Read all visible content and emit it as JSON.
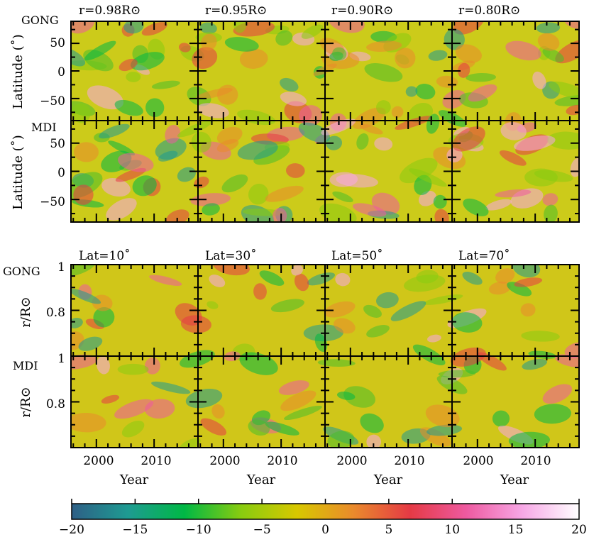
{
  "chart_data": {
    "type": "heatmap",
    "colorbar": {
      "min": -20,
      "max": 20,
      "tick_labels": [
        "−20",
        "−15",
        "−10",
        "−5",
        "0",
        "5",
        "10",
        "15",
        "20"
      ],
      "colors": [
        "#2e5f86",
        "#1e9b92",
        "#00b845",
        "#88cc10",
        "#d8c800",
        "#ea8a2c",
        "#e53a45",
        "#ee5aa0",
        "#f7a8e6",
        "#ffffff"
      ]
    },
    "top": {
      "columns": [
        "r=0.98R⊙",
        "r=0.95R⊙",
        "r=0.90R⊙",
        "r=0.80R⊙"
      ],
      "row_labels": [
        "GONG",
        "MDI"
      ],
      "ylabel": "Latitude (˚)",
      "ytick_labels": [
        "50",
        "0",
        "−50"
      ],
      "ylim": [
        -90,
        90
      ]
    },
    "bottom": {
      "columns": [
        "Lat=10˚",
        "Lat=30˚",
        "Lat=50˚",
        "Lat=70˚"
      ],
      "row_labels": [
        "GONG",
        "MDI"
      ],
      "ylabel": "r/R⊙",
      "ytick_labels": [
        "1",
        "0.8"
      ],
      "ylim": [
        0.6,
        1.0
      ],
      "xlabel": "Year",
      "xtick_labels": [
        "2000",
        "2010"
      ],
      "xlim": [
        1995.6,
        2017.6
      ]
    }
  }
}
